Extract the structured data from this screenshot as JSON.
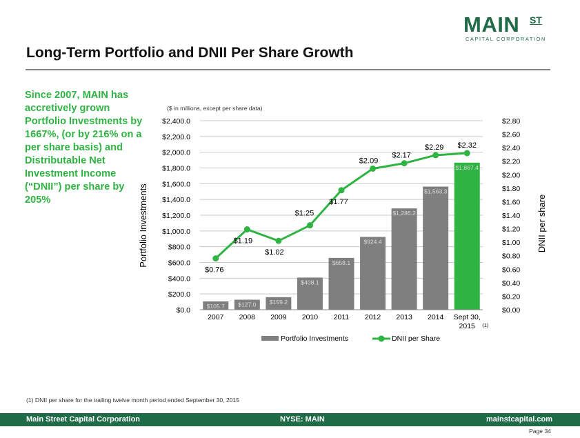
{
  "logo": {
    "main": "MAIN",
    "st": "ST",
    "sub": "CAPITAL CORPORATION"
  },
  "title": "Long-Term Portfolio and DNII Per Share Growth",
  "callout": "Since 2007, MAIN has accretively grown Portfolio Investments by 1667%, (or by 216% on a per share basis) and Distributable Net Investment Income (“DNII”) per share by 205%",
  "chart_data": {
    "type": "bar",
    "subtitle": "($ in millions, except per share data)",
    "categories": [
      "2007",
      "2008",
      "2009",
      "2010",
      "2011",
      "2012",
      "2013",
      "2014",
      "Sept 30, 2015"
    ],
    "category_note": "(1)",
    "ylabel_left": "Portfolio Investments",
    "ylabel_right": "DNII per share",
    "left_ticks": [
      "$0.0",
      "$200.0",
      "$400.0",
      "$600.0",
      "$800.0",
      "$1,000.0",
      "$1,200.0",
      "$1,400.0",
      "$1,600.0",
      "$1,800.0",
      "$2,000.0",
      "$2,200.0",
      "$2,400.0"
    ],
    "right_ticks": [
      "$0.00",
      "$0.20",
      "$0.40",
      "$0.60",
      "$0.80",
      "$1.00",
      "$1.20",
      "$1.40",
      "$1.60",
      "$1.80",
      "$2.00",
      "$2.20",
      "$2.40",
      "$2.60",
      "$2.80"
    ],
    "ylim_left": [
      0,
      2400
    ],
    "ylim_right": [
      0,
      2.8
    ],
    "series": [
      {
        "name": "Portfolio Investments",
        "kind": "bar",
        "axis": "left",
        "color": "#7f7f7f",
        "highlight_color": "#2fb342",
        "values": [
          105.7,
          127.0,
          159.2,
          408.1,
          658.1,
          924.4,
          1286.2,
          1563.3,
          1867.4
        ],
        "labels": [
          "$105.7",
          "$127.0",
          "$159.2",
          "$408.1",
          "$658.1",
          "$924.4",
          "$1,286.2",
          "$1,563.3",
          "$1,867.4"
        ]
      },
      {
        "name": "DNII per Share",
        "kind": "line",
        "axis": "right",
        "color": "#2fb342",
        "values": [
          0.76,
          1.19,
          1.02,
          1.25,
          1.77,
          2.09,
          2.17,
          2.29,
          2.32
        ],
        "labels": [
          "$0.76",
          "$1.19",
          "$1.02",
          "$1.25",
          "$1.77",
          "$2.09",
          "$2.17",
          "$2.29",
          "$2.32"
        ]
      }
    ],
    "legend": {
      "position": "bottom",
      "items": [
        "Portfolio Investments",
        "DNII per Share"
      ]
    },
    "grid": true
  },
  "footnote": "(1)    DNII per share for the trailing twelve month period ended September 30, 2015",
  "footer": {
    "left": "Main Street Capital Corporation",
    "center": "NYSE: MAIN",
    "right": "mainstcapital.com"
  },
  "page": "Page  34"
}
